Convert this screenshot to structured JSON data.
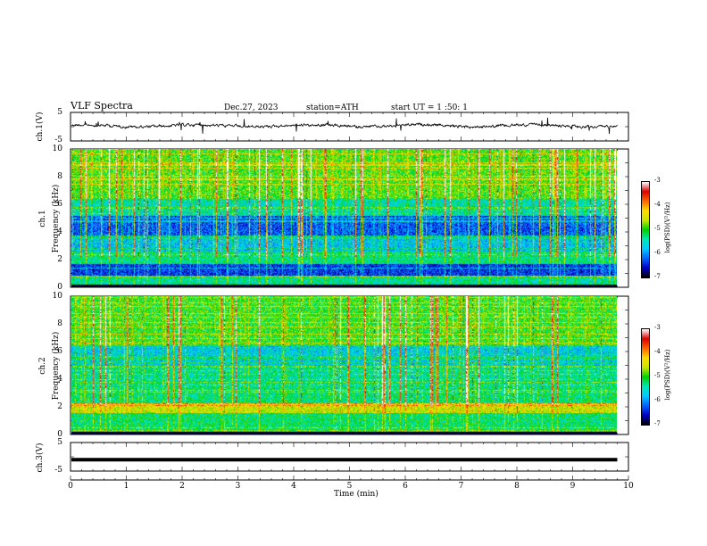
{
  "header": {
    "title": "VLF Spectra",
    "date": "Dec.27, 2023",
    "station": "station=ATH",
    "start": "start UT =  1 :50: 1"
  },
  "panels": {
    "ch1": {
      "ylabel": "ch.1(V)",
      "y_ticks": [
        "5",
        "-5"
      ]
    },
    "spec1": {
      "ylabel_top": "ch.1",
      "ylabel": "Frequency (kHz)",
      "y_ticks": [
        "10",
        "8",
        "6",
        "4",
        "2",
        "0"
      ]
    },
    "spec2": {
      "ylabel_top": "ch.2",
      "ylabel": "Frequency (kHz)",
      "y_ticks": [
        "10",
        "8",
        "6",
        "4",
        "2",
        "0"
      ]
    },
    "ch3": {
      "ylabel": "ch.3(V)",
      "y_ticks": [
        "5",
        "-5"
      ]
    }
  },
  "colorbar": {
    "label": "log(PSD)(V²/Hz)",
    "ticks": [
      "-3",
      "-4",
      "-5",
      "-6",
      "-7"
    ],
    "colors": [
      "#000000",
      "#0000c8",
      "#0064ff",
      "#00c8ff",
      "#00e6b4",
      "#00d200",
      "#c8e600",
      "#ffdc00",
      "#ff6400",
      "#dc0000",
      "#ffffff"
    ]
  },
  "x_axis": {
    "label": "Time (min)",
    "ticks": [
      "0",
      "1",
      "2",
      "3",
      "4",
      "5",
      "6",
      "7",
      "8",
      "9",
      "10"
    ]
  },
  "chart_data": [
    {
      "type": "line",
      "name": "ch.1(V)",
      "xlabel": "Time (min)",
      "ylabel": "ch.1(V)",
      "xlim": [
        0,
        10
      ],
      "ylim": [
        -5,
        5
      ],
      "x_end": 9.8,
      "description_level": 0.0
    },
    {
      "type": "heatmap",
      "name": "ch.1",
      "xlabel": "Time (min)",
      "ylabel": "Frequency (kHz)",
      "xlim": [
        0,
        10
      ],
      "ylim": [
        0,
        10
      ],
      "x_end": 9.8,
      "colorbar_range": [
        -7,
        -3
      ],
      "colorbar_label": "log(PSD)(V²/Hz)"
    },
    {
      "type": "heatmap",
      "name": "ch.2",
      "xlabel": "Time (min)",
      "ylabel": "Frequency (kHz)",
      "xlim": [
        0,
        10
      ],
      "ylim": [
        0,
        10
      ],
      "x_end": 9.8,
      "colorbar_range": [
        -7,
        -3
      ],
      "colorbar_label": "log(PSD)(V²/Hz)"
    },
    {
      "type": "line",
      "name": "ch.3(V)",
      "xlabel": "Time (min)",
      "ylabel": "ch.3(V)",
      "xlim": [
        0,
        10
      ],
      "ylim": [
        -5,
        5
      ],
      "x_end": 9.8,
      "level": -1.0
    }
  ]
}
